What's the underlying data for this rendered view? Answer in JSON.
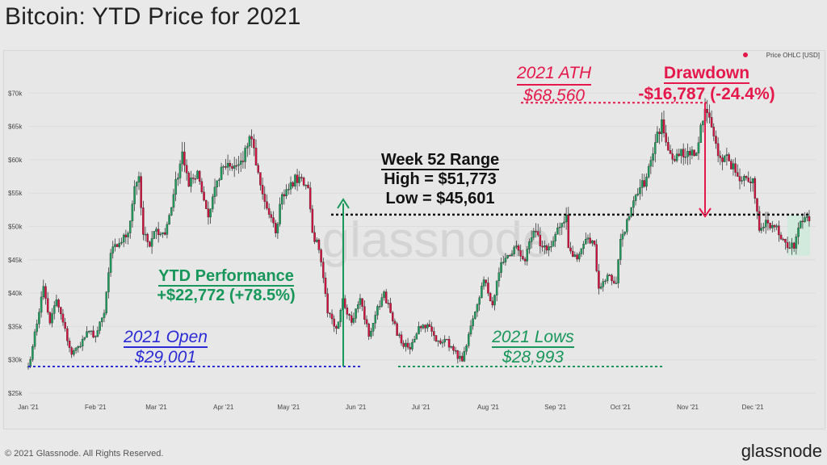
{
  "title": "Bitcoin: YTD Price for 2021",
  "footer": "© 2021 Glassnode. All Rights Reserved.",
  "brand": "glassnode",
  "watermark": "glassnode",
  "colors": {
    "up": "#1f9d5c",
    "down": "#d3113f",
    "red": "#e5184b",
    "blue": "#2b2bd6",
    "green": "#17975a"
  },
  "chart_data": {
    "type": "candlestick",
    "title": "Bitcoin: YTD Price for 2021",
    "legend": {
      "label": "Price OHLC [USD]",
      "placement": "top-right"
    },
    "ylim": [
      25000,
      72000
    ],
    "yticks": [
      {
        "v": 25000,
        "label": "$25k"
      },
      {
        "v": 30000,
        "label": "$30k"
      },
      {
        "v": 35000,
        "label": "$35k"
      },
      {
        "v": 40000,
        "label": "$40k"
      },
      {
        "v": 45000,
        "label": "$45k"
      },
      {
        "v": 50000,
        "label": "$50k"
      },
      {
        "v": 55000,
        "label": "$55k"
      },
      {
        "v": 60000,
        "label": "$60k"
      },
      {
        "v": 65000,
        "label": "$65k"
      },
      {
        "v": 70000,
        "label": "$70k"
      }
    ],
    "xticks": [
      {
        "d": "2021-01-01",
        "label": "Jan '21"
      },
      {
        "d": "2021-02-01",
        "label": "Feb '21"
      },
      {
        "d": "2021-03-01",
        "label": "Mar '21"
      },
      {
        "d": "2021-04-01",
        "label": "Apr '21"
      },
      {
        "d": "2021-05-01",
        "label": "May '21"
      },
      {
        "d": "2021-06-01",
        "label": "Jun '21"
      },
      {
        "d": "2021-07-01",
        "label": "Jul '21"
      },
      {
        "d": "2021-08-01",
        "label": "Aug '21"
      },
      {
        "d": "2021-09-01",
        "label": "Sep '21"
      },
      {
        "d": "2021-10-01",
        "label": "Oct '21"
      },
      {
        "d": "2021-11-01",
        "label": "Nov '21"
      },
      {
        "d": "2021-12-01",
        "label": "Dec '21"
      }
    ],
    "close_keypoints": [
      [
        "2021-01-01",
        29000
      ],
      [
        "2021-01-03",
        32000
      ],
      [
        "2021-01-08",
        41000
      ],
      [
        "2021-01-11",
        35500
      ],
      [
        "2021-01-14",
        39000
      ],
      [
        "2021-01-21",
        30800
      ],
      [
        "2021-01-24",
        32000
      ],
      [
        "2021-01-29",
        34300
      ],
      [
        "2021-02-01",
        33500
      ],
      [
        "2021-02-05",
        37000
      ],
      [
        "2021-02-08",
        46000
      ],
      [
        "2021-02-12",
        47500
      ],
      [
        "2021-02-16",
        49000
      ],
      [
        "2021-02-19",
        56000
      ],
      [
        "2021-02-21",
        57500
      ],
      [
        "2021-02-23",
        48800
      ],
      [
        "2021-02-26",
        47000
      ],
      [
        "2021-03-01",
        49600
      ],
      [
        "2021-03-05",
        48800
      ],
      [
        "2021-03-09",
        54800
      ],
      [
        "2021-03-13",
        61200
      ],
      [
        "2021-03-16",
        56000
      ],
      [
        "2021-03-20",
        58300
      ],
      [
        "2021-03-25",
        51400
      ],
      [
        "2021-03-28",
        55900
      ],
      [
        "2021-04-01",
        59000
      ],
      [
        "2021-04-05",
        58700
      ],
      [
        "2021-04-10",
        59700
      ],
      [
        "2021-04-13",
        63500
      ],
      [
        "2021-04-14",
        63100
      ],
      [
        "2021-04-18",
        56200
      ],
      [
        "2021-04-22",
        51800
      ],
      [
        "2021-04-25",
        49000
      ],
      [
        "2021-04-28",
        54800
      ],
      [
        "2021-05-02",
        56600
      ],
      [
        "2021-05-07",
        57300
      ],
      [
        "2021-05-10",
        55800
      ],
      [
        "2021-05-12",
        49100
      ],
      [
        "2021-05-15",
        46500
      ],
      [
        "2021-05-19",
        37000
      ],
      [
        "2021-05-23",
        34700
      ],
      [
        "2021-05-26",
        39200
      ],
      [
        "2021-05-30",
        35600
      ],
      [
        "2021-06-03",
        39200
      ],
      [
        "2021-06-07",
        33500
      ],
      [
        "2021-06-10",
        36700
      ],
      [
        "2021-06-14",
        40200
      ],
      [
        "2021-06-18",
        35800
      ],
      [
        "2021-06-22",
        32500
      ],
      [
        "2021-06-26",
        31600
      ],
      [
        "2021-06-30",
        35000
      ],
      [
        "2021-07-04",
        35300
      ],
      [
        "2021-07-08",
        32800
      ],
      [
        "2021-07-12",
        33100
      ],
      [
        "2021-07-16",
        31400
      ],
      [
        "2021-07-20",
        29800
      ],
      [
        "2021-07-22",
        32100
      ],
      [
        "2021-07-26",
        37200
      ],
      [
        "2021-07-30",
        42000
      ],
      [
        "2021-08-03",
        38200
      ],
      [
        "2021-08-07",
        44600
      ],
      [
        "2021-08-11",
        45600
      ],
      [
        "2021-08-14",
        47100
      ],
      [
        "2021-08-18",
        44800
      ],
      [
        "2021-08-22",
        49300
      ],
      [
        "2021-08-26",
        46900
      ],
      [
        "2021-08-30",
        47000
      ],
      [
        "2021-09-03",
        49900
      ],
      [
        "2021-09-06",
        51750
      ],
      [
        "2021-09-07",
        46800
      ],
      [
        "2021-09-11",
        45100
      ],
      [
        "2021-09-15",
        48100
      ],
      [
        "2021-09-19",
        47300
      ],
      [
        "2021-09-21",
        40700
      ],
      [
        "2021-09-25",
        42700
      ],
      [
        "2021-09-29",
        41500
      ],
      [
        "2021-10-01",
        48100
      ],
      [
        "2021-10-05",
        51500
      ],
      [
        "2021-10-09",
        54900
      ],
      [
        "2021-10-13",
        57400
      ],
      [
        "2021-10-16",
        60900
      ],
      [
        "2021-10-20",
        66000
      ],
      [
        "2021-10-24",
        60900
      ],
      [
        "2021-10-28",
        60600
      ],
      [
        "2021-11-01",
        61300
      ],
      [
        "2021-11-05",
        61000
      ],
      [
        "2021-11-09",
        67600
      ],
      [
        "2021-11-12",
        64900
      ],
      [
        "2021-11-16",
        60300
      ],
      [
        "2021-11-20",
        59800
      ],
      [
        "2021-11-24",
        57500
      ],
      [
        "2021-11-28",
        57300
      ],
      [
        "2021-12-01",
        57200
      ],
      [
        "2021-12-04",
        49400
      ],
      [
        "2021-12-08",
        50500
      ],
      [
        "2021-12-12",
        50100
      ],
      [
        "2021-12-16",
        47600
      ],
      [
        "2021-12-20",
        46700
      ],
      [
        "2021-12-23",
        50800
      ],
      [
        "2021-12-27",
        50800
      ]
    ],
    "levels": {
      "ath": 68560,
      "open": 29001,
      "lows": 28993,
      "range_high": 51773,
      "range_low": 45601
    }
  },
  "annotations": {
    "ath": {
      "line1": "2021 ATH",
      "line2": "$68,560"
    },
    "drawdown": {
      "line1": "Drawdown",
      "line2": "-$16,787 (-24.4%)"
    },
    "week52": {
      "line1": "Week 52 Range",
      "line2": "High = $51,773",
      "line3": "Low = $45,601"
    },
    "ytd": {
      "line1": "YTD Performance",
      "line2": "+$22,772 (+78.5%)"
    },
    "open": {
      "line1": "2021 Open",
      "line2": "$29,001"
    },
    "lows": {
      "line1": "2021 Lows",
      "line2": "$28,993"
    }
  }
}
